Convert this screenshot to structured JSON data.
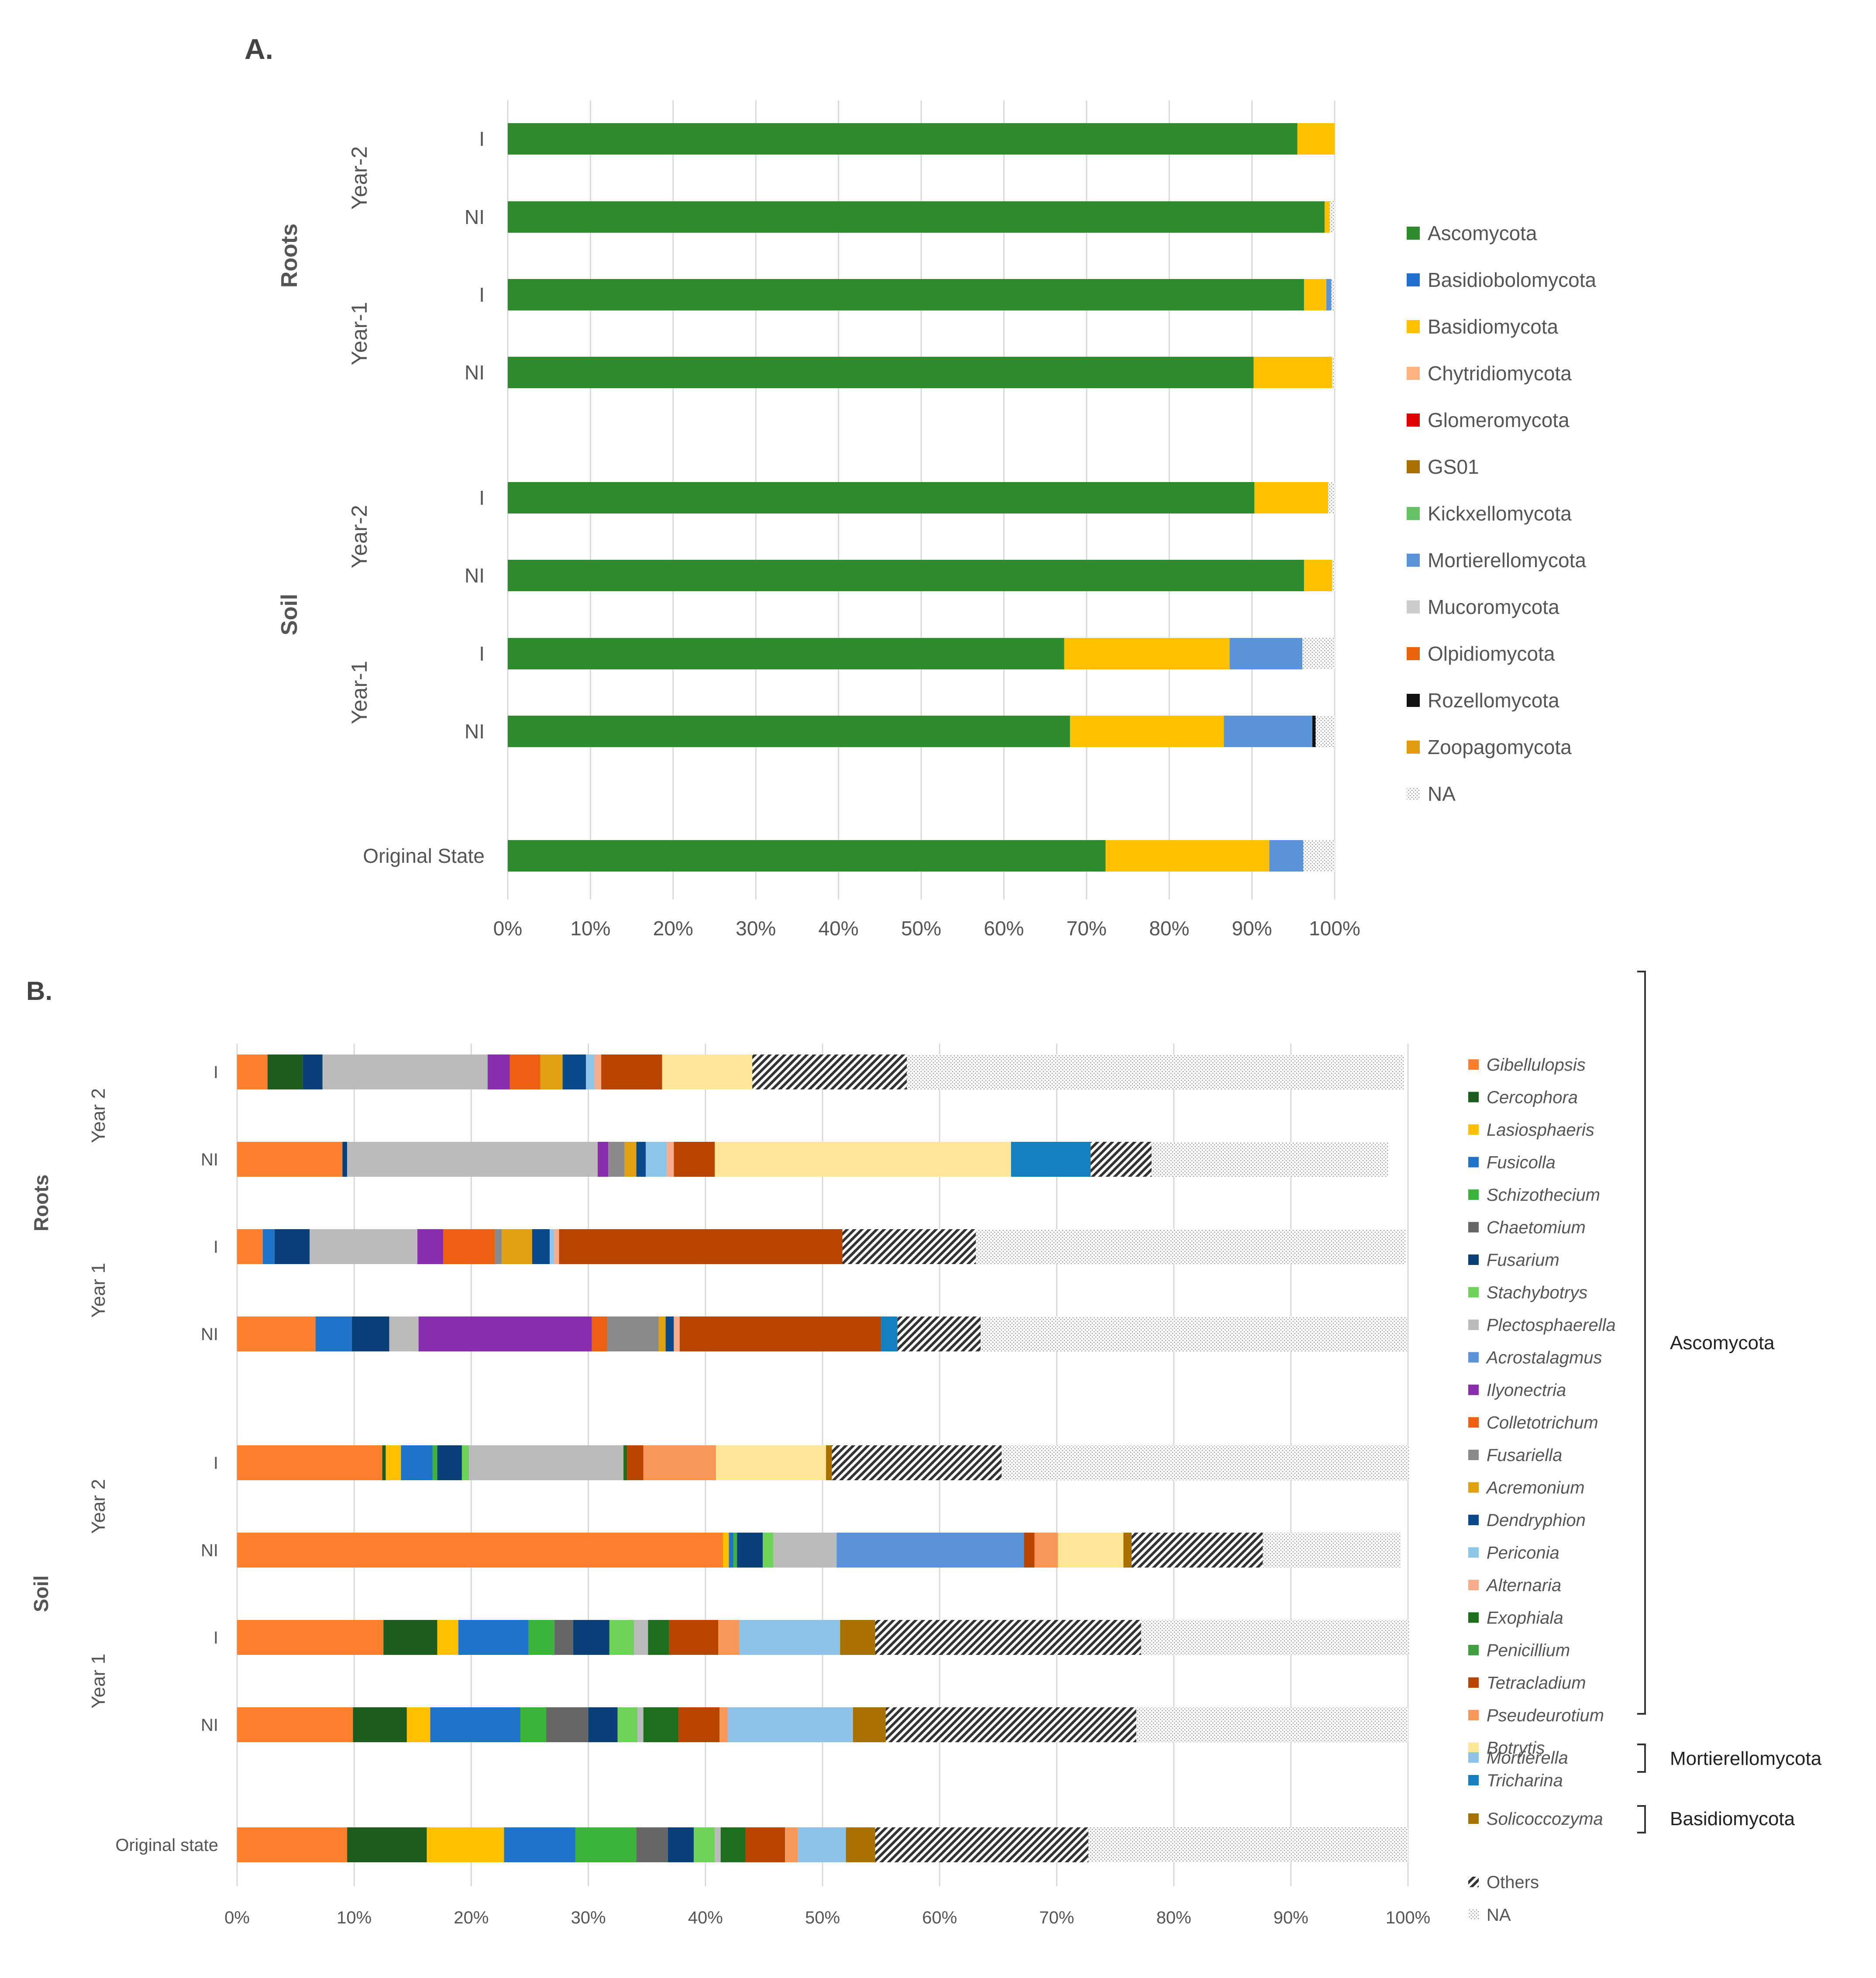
{
  "chart_data": [
    {
      "panel": "A.",
      "type": "bar",
      "orientation": "horizontal",
      "stacked": "percent",
      "rows": [
        {
          "group": "Roots",
          "year": "Year-2",
          "label": "I"
        },
        {
          "group": "Roots",
          "year": "Year-2",
          "label": "NI"
        },
        {
          "group": "Roots",
          "year": "Year-1",
          "label": "I"
        },
        {
          "group": "Roots",
          "year": "Year-1",
          "label": "NI"
        },
        {
          "group": "Soil",
          "year": "Year-2",
          "label": "I"
        },
        {
          "group": "Soil",
          "year": "Year-2",
          "label": "NI"
        },
        {
          "group": "Soil",
          "year": "Year-1",
          "label": "I"
        },
        {
          "group": "Soil",
          "year": "Year-1",
          "label": "NI"
        },
        {
          "group": "",
          "year": "",
          "label": "Original State"
        }
      ],
      "groups": [
        "Roots",
        "Soil"
      ],
      "years": [
        "Year-2",
        "Year-1"
      ],
      "series": [
        {
          "name": "Ascomycota",
          "color": "#2e8b2e",
          "values": [
            95.5,
            98.8,
            96.3,
            90.2,
            90.3,
            96.3,
            67.3,
            68.0,
            72.3
          ]
        },
        {
          "name": "Basidiobolomycota",
          "color": "#1f6fcf",
          "values": [
            0,
            0,
            0,
            0,
            0,
            0,
            0,
            0,
            0
          ]
        },
        {
          "name": "Basidiomycota",
          "color": "#ffc000",
          "values": [
            4.5,
            0.6,
            2.7,
            9.5,
            8.9,
            3.4,
            20.0,
            18.6,
            19.8
          ]
        },
        {
          "name": "Chytridiomycota",
          "color": "#ffb380",
          "values": [
            0,
            0,
            0,
            0,
            0,
            0,
            0,
            0,
            0
          ]
        },
        {
          "name": "Glomeromycota",
          "color": "#e00000",
          "values": [
            0,
            0,
            0,
            0,
            0,
            0,
            0,
            0,
            0
          ]
        },
        {
          "name": "GS01",
          "color": "#a87000",
          "values": [
            0,
            0,
            0,
            0,
            0,
            0,
            0,
            0,
            0
          ]
        },
        {
          "name": "Kickxellomycota",
          "color": "#66c266",
          "values": [
            0,
            0,
            0,
            0,
            0,
            0,
            0,
            0,
            0
          ]
        },
        {
          "name": "Mortierellomycota",
          "color": "#5b93d8",
          "values": [
            0,
            0,
            0.6,
            0,
            0,
            0,
            8.8,
            10.7,
            4.1
          ]
        },
        {
          "name": "Mucoromycota",
          "color": "#cccccc",
          "values": [
            0,
            0,
            0,
            0,
            0,
            0,
            0,
            0,
            0
          ]
        },
        {
          "name": "Olpidiomycota",
          "color": "#e8630a",
          "values": [
            0,
            0,
            0,
            0,
            0,
            0,
            0,
            0,
            0
          ]
        },
        {
          "name": "Rozellomycota",
          "color": "#111111",
          "values": [
            0,
            0,
            0,
            0,
            0,
            0,
            0,
            0.4,
            0
          ]
        },
        {
          "name": "Zoopagomycota",
          "color": "#e09c10",
          "values": [
            0,
            0,
            0,
            0,
            0,
            0,
            0,
            0,
            0
          ]
        },
        {
          "name": "NA",
          "color": "dots",
          "values": [
            0,
            0.6,
            0.4,
            0.3,
            0.8,
            0.3,
            3.9,
            2.3,
            3.8
          ]
        }
      ],
      "xticks": [
        "0%",
        "10%",
        "20%",
        "30%",
        "40%",
        "50%",
        "60%",
        "70%",
        "80%",
        "90%",
        "100%"
      ],
      "xlim": [
        0,
        100
      ],
      "legend_position": "right"
    },
    {
      "panel": "B.",
      "type": "bar",
      "orientation": "horizontal",
      "stacked": "percent",
      "rows": [
        {
          "group": "Roots",
          "year": "Year 2",
          "label": "I"
        },
        {
          "group": "Roots",
          "year": "Year 2",
          "label": "NI"
        },
        {
          "group": "Roots",
          "year": "Year 1",
          "label": "I"
        },
        {
          "group": "Roots",
          "year": "Year 1",
          "label": "NI"
        },
        {
          "group": "Soil",
          "year": "Year 2",
          "label": "I"
        },
        {
          "group": "Soil",
          "year": "Year 2",
          "label": "NI"
        },
        {
          "group": "Soil",
          "year": "Year 1",
          "label": "I"
        },
        {
          "group": "Soil",
          "year": "Year 1",
          "label": "NI"
        },
        {
          "group": "",
          "year": "",
          "label": "Original state"
        }
      ],
      "groups": [
        "Roots",
        "Soil"
      ],
      "years": [
        "Year 2",
        "Year 1"
      ],
      "series": [
        {
          "name": "Gibellulopsis",
          "color": "#fd7f2c",
          "values": [
            2.6,
            9.0,
            2.2,
            6.7,
            12.4,
            41.5,
            12.5,
            9.9,
            9.4
          ]
        },
        {
          "name": "Cercophora",
          "color": "#1d5c1d",
          "values": [
            3.0,
            0,
            0,
            0,
            0.3,
            0,
            4.6,
            4.6,
            6.8
          ]
        },
        {
          "name": "Lasiosphaeris",
          "color": "#ffc000",
          "values": [
            0,
            0,
            0,
            0,
            1.3,
            0.5,
            1.8,
            2.0,
            6.6
          ]
        },
        {
          "name": "Fusicolla",
          "color": "#1f74c9",
          "values": [
            0,
            0,
            1.0,
            3.1,
            2.7,
            0.4,
            6.0,
            7.7,
            6.1
          ]
        },
        {
          "name": "Schizothecium",
          "color": "#3cb43c",
          "values": [
            0,
            0,
            0,
            0,
            0.4,
            0.3,
            2.2,
            2.2,
            5.2
          ]
        },
        {
          "name": "Chaetomium",
          "color": "#666666",
          "values": [
            0,
            0,
            0,
            0,
            0,
            0,
            1.6,
            3.6,
            2.7
          ]
        },
        {
          "name": "Fusarium",
          "color": "#0a3f78",
          "values": [
            1.7,
            0.4,
            3.0,
            3.2,
            2.1,
            2.2,
            3.1,
            2.5,
            2.2
          ]
        },
        {
          "name": "Stachybotrys",
          "color": "#6fd35a",
          "values": [
            0,
            0,
            0,
            0,
            0.6,
            0.9,
            2.1,
            1.7,
            1.8
          ]
        },
        {
          "name": "Plectosphaerella",
          "color": "#bbbbbb",
          "values": [
            14.1,
            21.4,
            9.2,
            2.5,
            13.2,
            5.4,
            1.2,
            0.5,
            0.5
          ]
        },
        {
          "name": "Acrostalagmus",
          "color": "#5b93d8",
          "values": [
            0,
            0,
            0,
            0,
            0,
            16.0,
            0,
            0,
            0
          ]
        },
        {
          "name": "Ilyonectria",
          "color": "#8a2eb0",
          "values": [
            1.9,
            0.9,
            2.2,
            14.8,
            0,
            0,
            0,
            0,
            0
          ]
        },
        {
          "name": "Colletotrichum",
          "color": "#ee6011",
          "values": [
            2.6,
            0,
            4.4,
            1.3,
            0,
            0,
            0,
            0,
            0
          ]
        },
        {
          "name": "Fusariella",
          "color": "#8a8a8a",
          "values": [
            0,
            1.4,
            0.6,
            4.4,
            0,
            0,
            0,
            0,
            0
          ]
        },
        {
          "name": "Acremonium",
          "color": "#e0a010",
          "values": [
            1.9,
            1.0,
            2.6,
            0.6,
            0,
            0,
            0,
            0,
            0
          ]
        },
        {
          "name": "Dendryphion",
          "color": "#0a4a8a",
          "values": [
            2.0,
            0.8,
            1.5,
            0.7,
            0,
            0,
            0,
            0,
            0
          ]
        },
        {
          "name": "Periconia",
          "color": "#8ec6ea",
          "values": [
            0.7,
            1.8,
            0.4,
            0,
            0,
            0,
            0,
            0,
            0
          ]
        },
        {
          "name": "Alternaria",
          "color": "#f7ad8c",
          "values": [
            0.6,
            0.6,
            0.4,
            0.5,
            0,
            0,
            0,
            0,
            0
          ]
        },
        {
          "name": "Exophiala",
          "color": "#1d6e1d",
          "values": [
            0,
            0,
            0,
            0,
            0.3,
            0,
            1.8,
            3.0,
            2.1
          ]
        },
        {
          "name": "Penicillium",
          "color": "#40a040",
          "values": [
            0,
            0,
            0,
            0,
            0,
            0,
            0,
            0,
            0
          ]
        },
        {
          "name": "Tetracladium",
          "color": "#b84400",
          "values": [
            5.2,
            3.5,
            24.2,
            17.2,
            1.4,
            0.9,
            4.2,
            3.5,
            3.4
          ]
        },
        {
          "name": "Pseudeurotium",
          "color": "#f8975a",
          "values": [
            0,
            0,
            0,
            0,
            6.2,
            2.0,
            1.8,
            0.7,
            1.1
          ]
        },
        {
          "name": "Botrytis",
          "color": "#ffe699",
          "values": [
            7.7,
            25.3,
            0,
            0,
            9.4,
            5.6,
            0,
            0,
            0
          ]
        },
        {
          "name": "Tricharina",
          "color": "#1580c0",
          "values": [
            0,
            6.8,
            0,
            1.4,
            0,
            0,
            0,
            0,
            0
          ]
        },
        {
          "name": "Mortierella",
          "color": "#8ec2e8",
          "values": [
            0,
            0,
            0,
            0,
            0,
            0,
            8.6,
            10.7,
            4.1
          ]
        },
        {
          "name": "Solicoccozyma",
          "color": "#a87000",
          "values": [
            0,
            0,
            0,
            0,
            0.5,
            0.7,
            3.0,
            2.8,
            2.5
          ]
        },
        {
          "name": "Others",
          "color": "hatch",
          "values": [
            13.2,
            5.2,
            11.4,
            7.1,
            14.5,
            11.2,
            22.7,
            21.4,
            18.2
          ]
        },
        {
          "name": "NA",
          "color": "dots",
          "values": [
            42.5,
            20.2,
            36.7,
            36.4,
            34.8,
            11.8,
            22.9,
            23.2,
            27.3
          ]
        }
      ],
      "phylum_brackets": [
        {
          "name": "Ascomycota",
          "members": "Gibellulopsis–Tricharina"
        },
        {
          "name": "Mortierellomycota",
          "members": "Mortierella"
        },
        {
          "name": "Basidiomycota",
          "members": "Solicoccozyma"
        }
      ],
      "xticks": [
        "0%",
        "10%",
        "20%",
        "30%",
        "40%",
        "50%",
        "60%",
        "70%",
        "80%",
        "90%",
        "100%"
      ],
      "xlim": [
        0,
        100
      ],
      "legend_position": "right"
    }
  ]
}
